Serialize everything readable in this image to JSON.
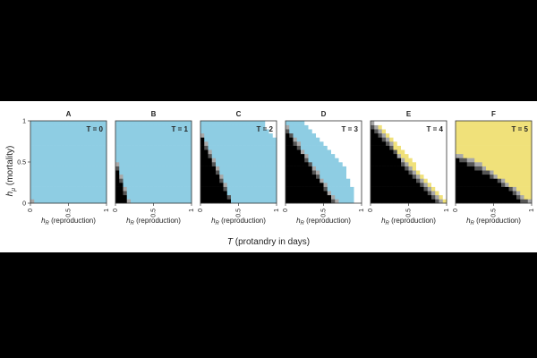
{
  "chart_data": {
    "type": "heatmap",
    "x_label_main": "T (protandry in days)",
    "x_label_sym": "T",
    "x_label_rest": " (protandry in days)",
    "ylabel_sym": "h",
    "ylabel_sub": "μ",
    "ylabel_rest": " (mortality)",
    "panel_xlabel_sym": "h",
    "panel_xlabel_sub": "R",
    "panel_xlabel_rest": " (reproduction)",
    "x_ticks": [
      "0",
      "0.5",
      "1"
    ],
    "y_ticks": [
      "0",
      "0.5",
      "1"
    ],
    "xlim": [
      0,
      1
    ],
    "ylim": [
      0,
      1
    ],
    "grid_resolution": 20,
    "state_colors": {
      "blue": "#8ecde3",
      "black": "#000000",
      "dark_gray": "#555555",
      "light_gray": "#a8a8a8",
      "white": "#ffffff",
      "yellow": "#f0e17a"
    },
    "panels": [
      {
        "letter": "A",
        "label": "T = 0",
        "boundary": [
          [
            0,
            0.14
          ],
          [
            0.02,
            0.05
          ],
          [
            0.03,
            0
          ]
        ],
        "upper_boundary": null,
        "upper_color": "blue"
      },
      {
        "letter": "B",
        "label": "T = 1",
        "boundary": [
          [
            0,
            0.55
          ],
          [
            0.05,
            0.42
          ],
          [
            0.1,
            0.25
          ],
          [
            0.15,
            0.12
          ],
          [
            0.18,
            0
          ]
        ],
        "upper_boundary": null,
        "upper_color": "blue"
      },
      {
        "letter": "C",
        "label": "T = 2",
        "boundary": [
          [
            0,
            0.9
          ],
          [
            0.08,
            0.72
          ],
          [
            0.18,
            0.52
          ],
          [
            0.28,
            0.32
          ],
          [
            0.35,
            0.15
          ],
          [
            0.42,
            0
          ]
        ],
        "upper_boundary": [
          [
            0.82,
            1
          ],
          [
            0.85,
            0.92
          ],
          [
            0.9,
            0.85
          ],
          [
            0.95,
            0.82
          ],
          [
            1,
            0.8
          ]
        ],
        "upper_color": "blue"
      },
      {
        "letter": "D",
        "label": "T = 3",
        "boundary": [
          [
            0,
            0.95
          ],
          [
            0.1,
            0.82
          ],
          [
            0.25,
            0.6
          ],
          [
            0.4,
            0.4
          ],
          [
            0.5,
            0.25
          ],
          [
            0.6,
            0.1
          ],
          [
            0.68,
            0
          ]
        ],
        "upper_boundary": [
          [
            0.2,
            1
          ],
          [
            0.4,
            0.85
          ],
          [
            0.6,
            0.62
          ],
          [
            0.78,
            0.42
          ],
          [
            0.88,
            0.2
          ],
          [
            0.9,
            0
          ]
        ],
        "upper_color": "blue"
      },
      {
        "letter": "E",
        "label": "T = 4",
        "boundary": [
          [
            0,
            0.98
          ],
          [
            0.15,
            0.85
          ],
          [
            0.3,
            0.68
          ],
          [
            0.45,
            0.5
          ],
          [
            0.6,
            0.35
          ],
          [
            0.75,
            0.2
          ],
          [
            0.88,
            0.08
          ],
          [
            0.95,
            0
          ]
        ],
        "upper_boundary": [
          [
            0.02,
            1
          ],
          [
            0.2,
            0.9
          ],
          [
            0.4,
            0.68
          ],
          [
            0.6,
            0.45
          ],
          [
            0.8,
            0.22
          ],
          [
            0.95,
            0.05
          ],
          [
            1,
            0
          ]
        ],
        "upper_color": "yellow"
      },
      {
        "letter": "F",
        "label": "T = 5",
        "boundary": [
          [
            0,
            0.6
          ],
          [
            0.2,
            0.52
          ],
          [
            0.4,
            0.42
          ],
          [
            0.55,
            0.32
          ],
          [
            0.7,
            0.22
          ],
          [
            0.85,
            0.1
          ],
          [
            1,
            0
          ]
        ],
        "upper_boundary": [
          [
            0.25,
            0.72
          ],
          [
            0.5,
            0.6
          ],
          [
            0.75,
            0.45
          ],
          [
            0.9,
            0.35
          ],
          [
            1,
            0.3
          ]
        ],
        "upper_color": "yellow"
      }
    ]
  }
}
